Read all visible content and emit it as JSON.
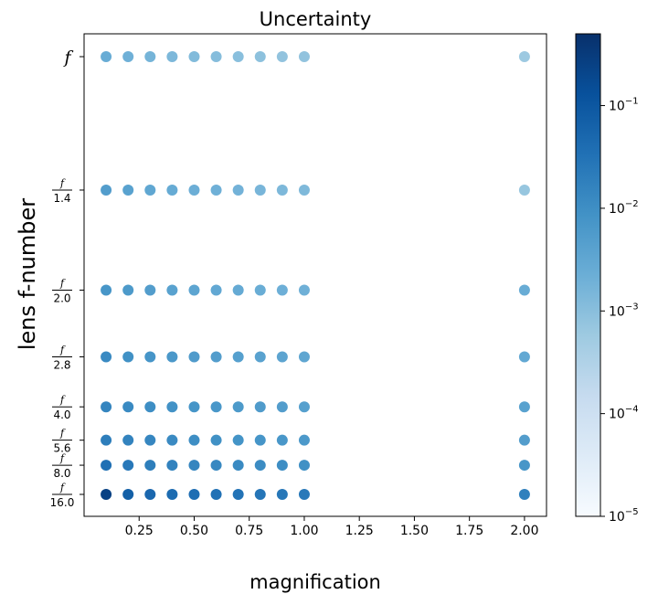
{
  "chart_data": {
    "type": "scatter",
    "title": "Uncertainty",
    "xlabel": "magnification",
    "ylabel": "lens f-number",
    "xlim": [
      0.0,
      2.1
    ],
    "x_ticks": [
      0.25,
      0.5,
      0.75,
      1.0,
      1.25,
      1.5,
      1.75,
      2.0
    ],
    "x_tick_labels": [
      "0.25",
      "0.50",
      "0.75",
      "1.00",
      "1.25",
      "1.50",
      "1.75",
      "2.00"
    ],
    "y_scale": "reciprocal aperture (f / N)",
    "y_categories": [
      {
        "n": "",
        "value": 1.0,
        "label": "f"
      },
      {
        "n": "1.4",
        "value": 0.7143,
        "label": "f/1.4"
      },
      {
        "n": "2.0",
        "value": 0.5,
        "label": "f/2.0"
      },
      {
        "n": "2.8",
        "value": 0.3571,
        "label": "f/2.8"
      },
      {
        "n": "4.0",
        "value": 0.25,
        "label": "f/4.0"
      },
      {
        "n": "5.6",
        "value": 0.1786,
        "label": "f/5.6"
      },
      {
        "n": "8.0",
        "value": 0.125,
        "label": "f/8.0"
      },
      {
        "n": "16.0",
        "value": 0.0625,
        "label": "f/16.0"
      }
    ],
    "tick_numerator": "f",
    "x": [
      0.1,
      0.2,
      0.3,
      0.4,
      0.5,
      0.6,
      0.7,
      0.8,
      0.9,
      1.0,
      2.0
    ],
    "uncertainty_matrix": [
      [
        0.0025,
        0.002,
        0.0017,
        0.0014,
        0.0012,
        0.0011,
        0.001,
        0.0009,
        0.0008,
        0.0008,
        0.0006
      ],
      [
        0.005,
        0.004,
        0.0032,
        0.0026,
        0.0022,
        0.002,
        0.0018,
        0.0016,
        0.0014,
        0.0013,
        0.0007
      ],
      [
        0.007,
        0.006,
        0.005,
        0.004,
        0.0035,
        0.003,
        0.0027,
        0.0024,
        0.0021,
        0.002,
        0.0025
      ],
      [
        0.012,
        0.009,
        0.0075,
        0.0065,
        0.0055,
        0.005,
        0.0045,
        0.004,
        0.0036,
        0.0033,
        0.003
      ],
      [
        0.015,
        0.012,
        0.01,
        0.0085,
        0.0075,
        0.0068,
        0.006,
        0.0055,
        0.005,
        0.0045,
        0.004
      ],
      [
        0.02,
        0.016,
        0.014,
        0.012,
        0.01,
        0.009,
        0.008,
        0.0075,
        0.0068,
        0.0062,
        0.005
      ],
      [
        0.035,
        0.025,
        0.02,
        0.017,
        0.015,
        0.013,
        0.012,
        0.011,
        0.01,
        0.009,
        0.007
      ],
      [
        0.25,
        0.07,
        0.05,
        0.042,
        0.038,
        0.034,
        0.031,
        0.028,
        0.026,
        0.024,
        0.018
      ]
    ],
    "colorbar": {
      "scale": "log",
      "range": [
        1e-05,
        0.5
      ],
      "ticks": [
        1e-05,
        0.0001,
        0.001,
        0.01,
        0.1
      ],
      "tick_labels": [
        {
          "base": "10",
          "exp": "−5"
        },
        {
          "base": "10",
          "exp": "−4"
        },
        {
          "base": "10",
          "exp": "−3"
        },
        {
          "base": "10",
          "exp": "−2"
        },
        {
          "base": "10",
          "exp": "−1"
        }
      ],
      "colormap": "Blues",
      "colormap_stops": [
        "#f7fbff",
        "#deebf7",
        "#c6dbef",
        "#9ecae1",
        "#6baed6",
        "#4292c6",
        "#2171b5",
        "#08519c",
        "#08306b"
      ]
    },
    "grid": false,
    "legend": "none"
  }
}
